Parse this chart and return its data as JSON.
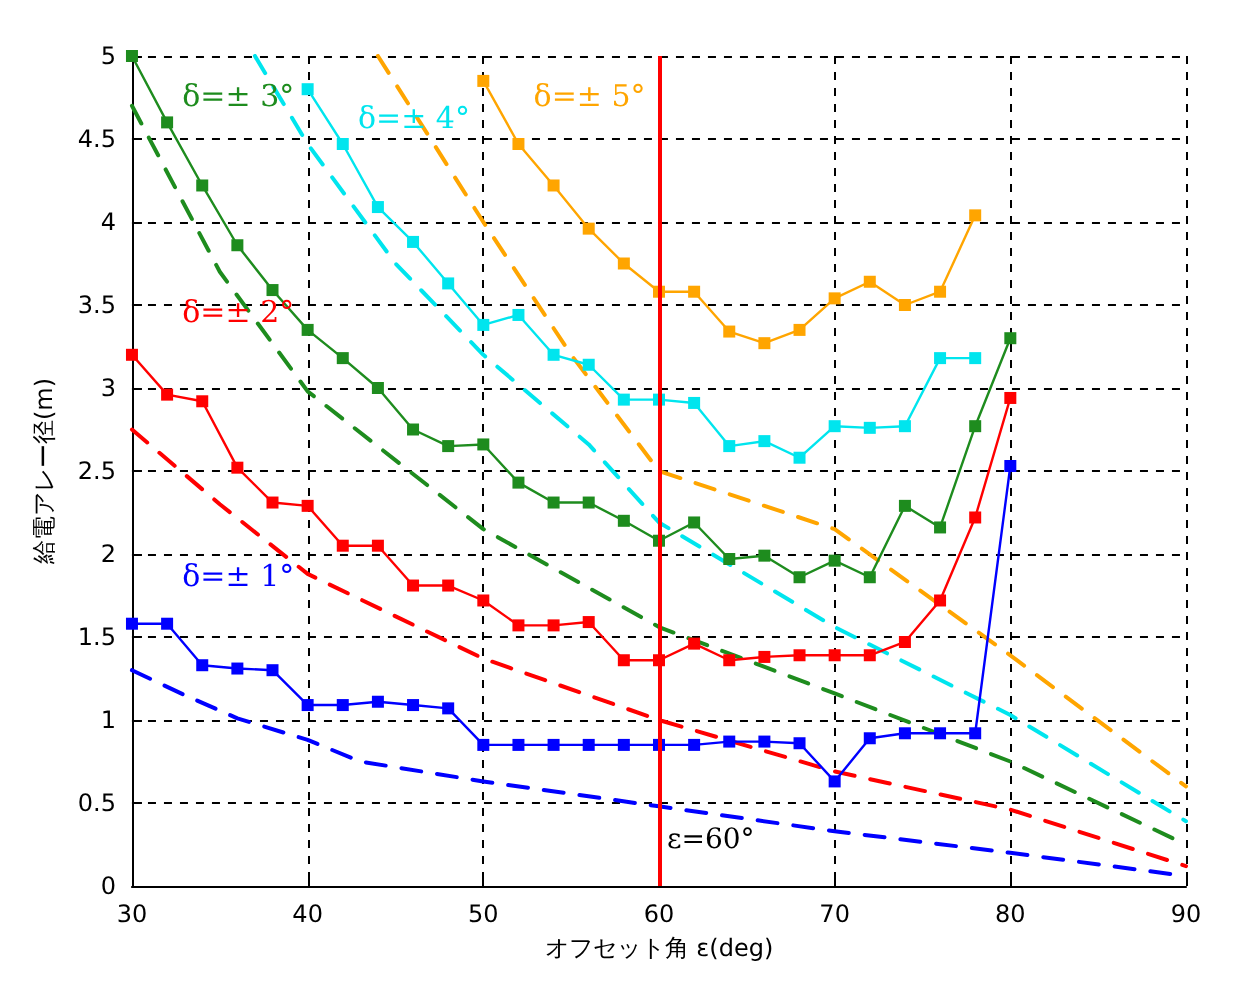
{
  "chart_data": {
    "type": "line",
    "xlabel": "オフセット角 ε(deg)",
    "ylabel": "給電アレー径(m)",
    "xlim": [
      30,
      90
    ],
    "xticks": [
      30,
      40,
      50,
      60,
      70,
      80,
      90
    ],
    "ylim": [
      0,
      5
    ],
    "yticks": [
      0,
      0.5,
      1,
      1.5,
      2,
      2.5,
      3,
      3.5,
      4,
      4.5,
      5
    ],
    "grid": true,
    "legend": false,
    "marker": "square",
    "line_style": "solid",
    "series": [
      {
        "name": "δ=± 1°",
        "color": "#0000ff",
        "x": [
          30,
          32,
          34,
          36,
          38,
          40,
          42,
          44,
          46,
          48,
          50,
          52,
          54,
          56,
          58,
          60,
          62,
          64,
          66,
          68,
          70,
          72,
          74,
          76,
          78,
          80
        ],
        "values": [
          1.58,
          1.58,
          1.33,
          1.31,
          1.3,
          1.09,
          1.09,
          1.11,
          1.09,
          1.07,
          0.85,
          0.85,
          0.85,
          0.85,
          0.85,
          0.85,
          0.85,
          0.87,
          0.87,
          0.86,
          0.63,
          0.89,
          0.92,
          0.92,
          0.92,
          2.53
        ]
      },
      {
        "name": "δ=± 2°",
        "color": "#ff0000",
        "x": [
          30,
          32,
          34,
          36,
          38,
          40,
          42,
          44,
          46,
          48,
          50,
          52,
          54,
          56,
          58,
          60,
          62,
          64,
          66,
          68,
          70,
          72,
          74,
          76,
          78,
          80
        ],
        "values": [
          3.2,
          2.96,
          2.92,
          2.52,
          2.31,
          2.29,
          2.05,
          2.05,
          1.81,
          1.81,
          1.72,
          1.57,
          1.57,
          1.59,
          1.36,
          1.36,
          1.46,
          1.36,
          1.38,
          1.39,
          1.39,
          1.39,
          1.47,
          1.72,
          2.22,
          2.94
        ]
      },
      {
        "name": "δ=± 3°",
        "color": "#1e8c1e",
        "x": [
          30,
          32,
          34,
          36,
          38,
          40,
          42,
          44,
          46,
          48,
          50,
          52,
          54,
          56,
          58,
          60,
          62,
          64,
          66,
          68,
          70,
          72,
          74,
          76,
          78,
          80
        ],
        "values": [
          5.0,
          4.6,
          4.22,
          3.86,
          3.59,
          3.35,
          3.18,
          3.0,
          2.75,
          2.65,
          2.66,
          2.43,
          2.31,
          2.31,
          2.2,
          2.08,
          2.19,
          1.97,
          1.99,
          1.86,
          1.96,
          1.86,
          2.29,
          2.16,
          2.77,
          3.3
        ]
      },
      {
        "name": "δ=± 4°",
        "color": "#00e5ee",
        "x": [
          40,
          42,
          44,
          46,
          48,
          50,
          52,
          54,
          56,
          58,
          60,
          62,
          64,
          66,
          68,
          70,
          72,
          74,
          76,
          78
        ],
        "values": [
          4.8,
          4.47,
          4.09,
          3.88,
          3.63,
          3.38,
          3.44,
          3.2,
          3.14,
          2.93,
          2.93,
          2.91,
          2.65,
          2.68,
          2.58,
          2.77,
          2.76,
          2.77,
          3.18,
          3.18
        ]
      },
      {
        "name": "δ=± 5°",
        "color": "#ffa500",
        "x": [
          50,
          52,
          54,
          56,
          58,
          60,
          62,
          64,
          66,
          68,
          70,
          72,
          74,
          76,
          78
        ],
        "values": [
          4.85,
          4.47,
          4.22,
          3.96,
          3.75,
          3.58,
          3.58,
          3.34,
          3.27,
          3.35,
          3.54,
          3.64,
          3.5,
          3.58,
          4.04
        ]
      },
      {
        "color": "#0000ff",
        "marker": "none",
        "line_style": "dashed",
        "x": [
          30,
          33,
          36,
          40,
          43,
          50,
          60,
          70,
          80,
          90
        ],
        "values": [
          1.3,
          1.15,
          1.01,
          0.88,
          0.75,
          0.63,
          0.48,
          0.33,
          0.2,
          0.06
        ]
      },
      {
        "color": "#ff0000",
        "marker": "none",
        "line_style": "dashed",
        "x": [
          30,
          35,
          40,
          50,
          60,
          70,
          80,
          90
        ],
        "values": [
          2.75,
          2.3,
          1.88,
          1.37,
          1.0,
          0.69,
          0.46,
          0.12
        ]
      },
      {
        "color": "#1e8c1e",
        "marker": "none",
        "line_style": "dashed",
        "x": [
          30,
          35,
          40,
          50,
          60,
          70,
          80,
          90
        ],
        "values": [
          4.7,
          3.7,
          2.98,
          2.15,
          1.56,
          1.16,
          0.75,
          0.25
        ]
      },
      {
        "color": "#00e5ee",
        "marker": "none",
        "line_style": "dashed",
        "x": [
          37,
          40,
          45,
          50,
          56,
          60,
          70,
          80,
          90
        ],
        "values": [
          5.0,
          4.47,
          3.75,
          3.2,
          2.66,
          2.19,
          1.56,
          1.03,
          0.39
        ]
      },
      {
        "color": "#ffa500",
        "marker": "none",
        "line_style": "dashed",
        "x": [
          44,
          50,
          55,
          60,
          70,
          80,
          90
        ],
        "values": [
          5.0,
          4.0,
          3.2,
          2.5,
          2.15,
          1.39,
          0.6
        ]
      }
    ],
    "ref_lines": [
      {
        "axis": "x",
        "value": 60,
        "label": "ε=60°",
        "color": "#ff0000"
      }
    ]
  }
}
